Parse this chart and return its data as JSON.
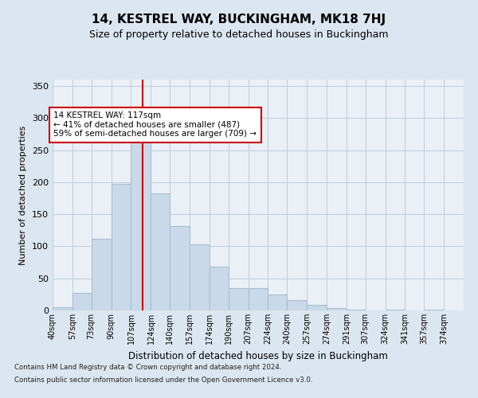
{
  "title": "14, KESTREL WAY, BUCKINGHAM, MK18 7HJ",
  "subtitle": "Size of property relative to detached houses in Buckingham",
  "xlabel": "Distribution of detached houses by size in Buckingham",
  "ylabel": "Number of detached properties",
  "bin_labels": [
    "40sqm",
    "57sqm",
    "73sqm",
    "90sqm",
    "107sqm",
    "124sqm",
    "140sqm",
    "157sqm",
    "174sqm",
    "190sqm",
    "207sqm",
    "224sqm",
    "240sqm",
    "257sqm",
    "274sqm",
    "291sqm",
    "307sqm",
    "324sqm",
    "341sqm",
    "357sqm",
    "374sqm"
  ],
  "bin_edges": [
    40,
    57,
    73,
    90,
    107,
    124,
    140,
    157,
    174,
    190,
    207,
    224,
    240,
    257,
    274,
    291,
    307,
    324,
    341,
    357,
    374,
    391
  ],
  "bar_heights": [
    5,
    27,
    112,
    198,
    293,
    183,
    131,
    103,
    68,
    35,
    35,
    25,
    16,
    9,
    4,
    1,
    0,
    1,
    0,
    1,
    0
  ],
  "bar_color": "#c9d9ea",
  "bar_edge_color": "#a8bfcf",
  "vline_x": 117,
  "vline_color": "#cc0000",
  "annotation_text": "14 KESTREL WAY: 117sqm\n← 41% of detached houses are smaller (487)\n59% of semi-detached houses are larger (709) →",
  "annotation_box_color": "#ffffff",
  "annotation_box_edge": "#cc0000",
  "ylim": [
    0,
    360
  ],
  "yticks": [
    0,
    50,
    100,
    150,
    200,
    250,
    300,
    350
  ],
  "footer_line1": "Contains HM Land Registry data © Crown copyright and database right 2024.",
  "footer_line2": "Contains public sector information licensed under the Open Government Licence v3.0.",
  "background_color": "#dce6f0",
  "plot_background_color": "#eaf0f6"
}
